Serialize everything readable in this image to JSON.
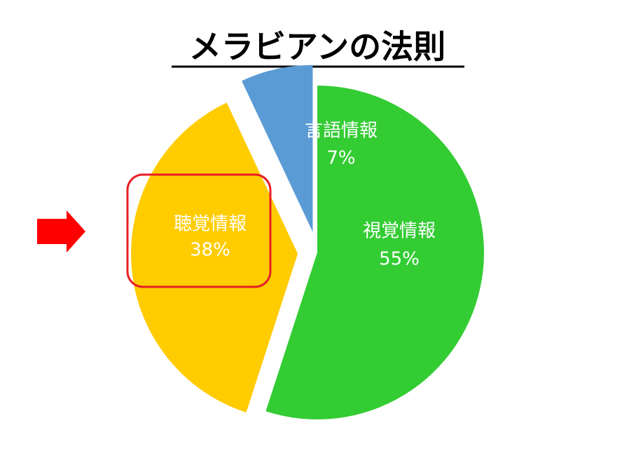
{
  "chart_data": {
    "type": "pie",
    "title": "メラビアンの法則",
    "categories": [
      "視覚情報",
      "聴覚情報",
      "言語情報"
    ],
    "values": [
      55,
      38,
      7
    ],
    "value_labels": [
      "55%",
      "38%",
      "7%"
    ],
    "colors": [
      "#33cc33",
      "#ffcc00",
      "#5b9bd5"
    ]
  }
}
